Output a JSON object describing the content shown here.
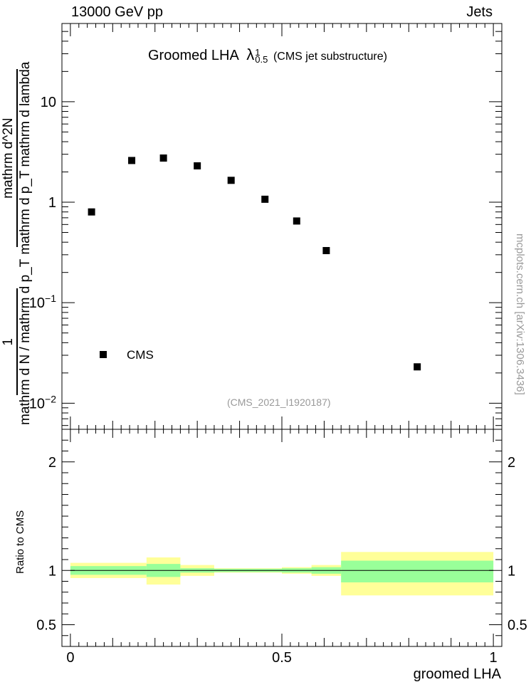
{
  "header": {
    "energy_label": "13000 GeV pp",
    "process_label": "Jets"
  },
  "plot_title": {
    "main": "Groomed LHA",
    "symbol": "λ",
    "sup": "1",
    "sub": "0.5",
    "note": "(CMS jet substructure)"
  },
  "analysis_id": "(CMS_2021_I1920187)",
  "watermark": "mcplots.cern.ch [arXiv:1306.3436]",
  "y_axis_main": {
    "numerator": "1",
    "denominator": "mathrm d N / mathrm d p_T",
    "rhs_numerator": "mathrm d^2N",
    "rhs_denominator": "mathrm d p_T mathrm d lambda"
  },
  "ratio_axis_label": "Ratio to CMS",
  "x_axis_label": "groomed LHA",
  "legend": {
    "series_name": "CMS"
  },
  "colors": {
    "band_inner": "#99ff99",
    "band_outer": "#ffff99",
    "marker": "#000000"
  },
  "chart_data": [
    {
      "type": "scatter",
      "yscale": "log",
      "xlim": [
        -0.02,
        1.02
      ],
      "ylim": [
        0.0055,
        60
      ],
      "yticks_labeled": [
        "10^-2",
        "10^-1",
        "1",
        "10"
      ],
      "series": [
        {
          "name": "CMS",
          "points": [
            {
              "x": 0.05,
              "y": 0.8
            },
            {
              "x": 0.145,
              "y": 2.6
            },
            {
              "x": 0.22,
              "y": 2.75
            },
            {
              "x": 0.3,
              "y": 2.3
            },
            {
              "x": 0.38,
              "y": 1.65
            },
            {
              "x": 0.46,
              "y": 1.07
            },
            {
              "x": 0.535,
              "y": 0.65
            },
            {
              "x": 0.605,
              "y": 0.33
            },
            {
              "x": 0.82,
              "y": 0.023
            }
          ]
        }
      ],
      "legend_position": "lower-left"
    },
    {
      "type": "area",
      "ylabel": "Ratio to CMS",
      "xlabel": "groomed LHA",
      "xlim": [
        -0.02,
        1.02
      ],
      "ylim": [
        0.3,
        2.3
      ],
      "xticks": [
        "0",
        "0.5",
        "1"
      ],
      "yticks": [
        "0.5",
        "1",
        "2"
      ],
      "reference_line": 1.0,
      "bins": [
        {
          "x0": 0.0,
          "x1": 0.18,
          "inner": [
            0.96,
            1.04
          ],
          "outer": [
            0.93,
            1.07
          ]
        },
        {
          "x0": 0.18,
          "x1": 0.26,
          "inner": [
            0.94,
            1.06
          ],
          "outer": [
            0.87,
            1.12
          ]
        },
        {
          "x0": 0.26,
          "x1": 0.34,
          "inner": [
            0.98,
            1.02
          ],
          "outer": [
            0.95,
            1.05
          ]
        },
        {
          "x0": 0.34,
          "x1": 0.5,
          "inner": [
            0.985,
            1.015
          ],
          "outer": [
            0.98,
            1.02
          ]
        },
        {
          "x0": 0.5,
          "x1": 0.57,
          "inner": [
            0.98,
            1.02
          ],
          "outer": [
            0.97,
            1.03
          ]
        },
        {
          "x0": 0.57,
          "x1": 0.64,
          "inner": [
            0.97,
            1.03
          ],
          "outer": [
            0.95,
            1.05
          ]
        },
        {
          "x0": 0.64,
          "x1": 1.0,
          "inner": [
            0.89,
            1.09
          ],
          "outer": [
            0.77,
            1.17
          ]
        }
      ]
    }
  ]
}
